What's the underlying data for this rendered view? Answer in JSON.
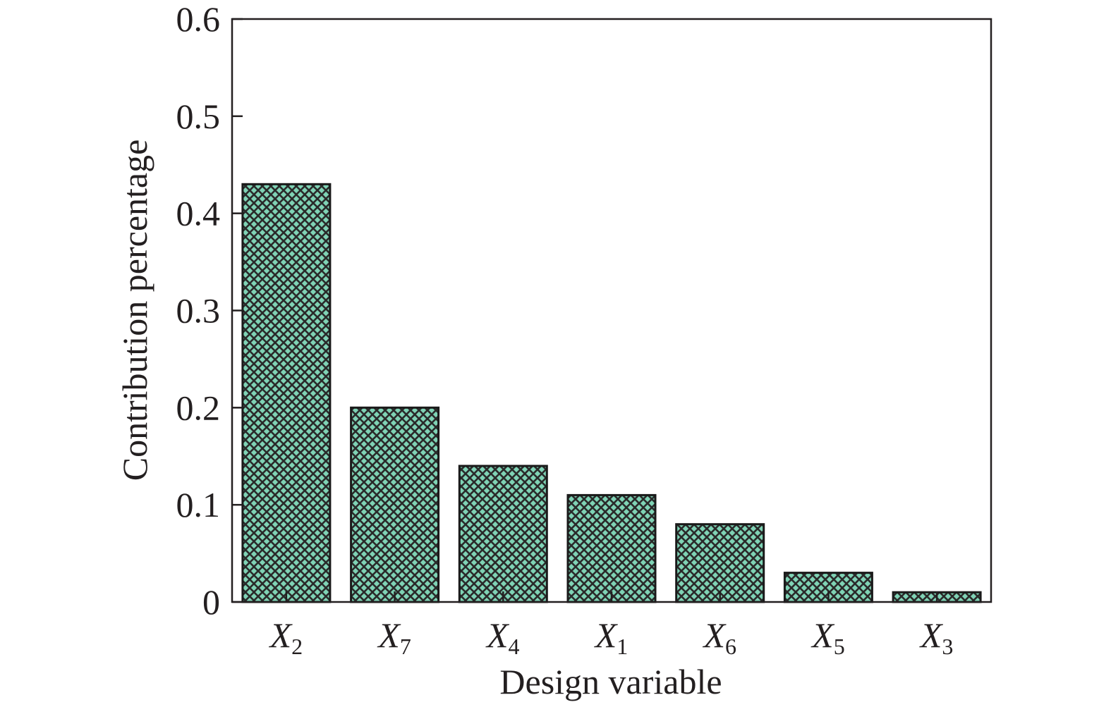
{
  "chart_data": {
    "type": "bar",
    "categories": [
      {
        "base": "X",
        "sub": "2"
      },
      {
        "base": "X",
        "sub": "7"
      },
      {
        "base": "X",
        "sub": "4"
      },
      {
        "base": "X",
        "sub": "1"
      },
      {
        "base": "X",
        "sub": "6"
      },
      {
        "base": "X",
        "sub": "5"
      },
      {
        "base": "X",
        "sub": "3"
      }
    ],
    "values": [
      0.43,
      0.2,
      0.14,
      0.11,
      0.08,
      0.03,
      0.01
    ],
    "xlabel": "Design variable",
    "ylabel": "Contribution percentage",
    "ylim": [
      0,
      0.6
    ],
    "yticks": [
      0,
      0.1,
      0.2,
      0.3,
      0.4,
      0.5,
      0.6
    ],
    "ytick_labels": [
      "0",
      "0.1",
      "0.2",
      "0.3",
      "0.4",
      "0.5",
      "0.6"
    ],
    "grid": false,
    "legend": "none",
    "colors": {
      "bar_fill": "#7fd3b5",
      "hatch": "#2a2a2a",
      "bar_edge": "#1a1a1a",
      "axis": "#231f20"
    }
  }
}
